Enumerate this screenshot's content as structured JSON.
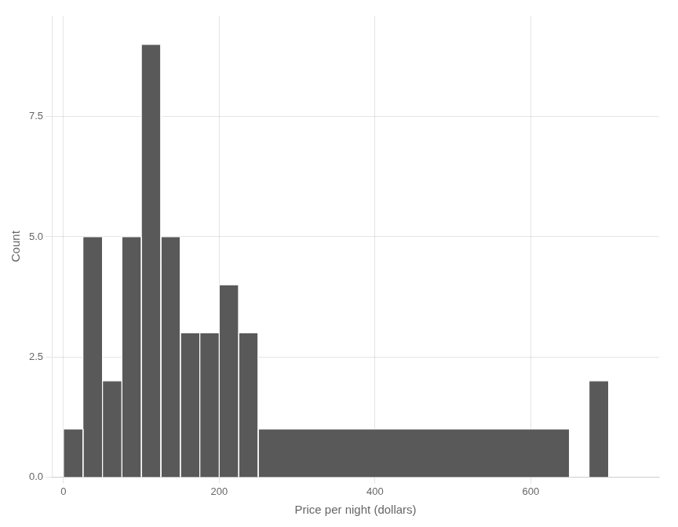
{
  "chart_data": {
    "type": "histogram",
    "bins": [
      0,
      25,
      50,
      75,
      100,
      125,
      150,
      175,
      200,
      225,
      250,
      650,
      675,
      700,
      725
    ],
    "counts": [
      1,
      5,
      2,
      5,
      9,
      5,
      3,
      3,
      4,
      3,
      1,
      0,
      2,
      0,
      0
    ],
    "color": "#595959",
    "xlabel": "Price per night (dollars)",
    "ylabel": "Count",
    "xlim": [
      -15,
      765
    ],
    "ylim": [
      0,
      9.6
    ],
    "xticks": [
      0,
      200,
      400,
      600
    ],
    "yticks": [
      {
        "value": 0,
        "label": "0.0"
      },
      2.5,
      {
        "value": 5,
        "label": "5.0"
      },
      7.5
    ],
    "grid": true
  }
}
